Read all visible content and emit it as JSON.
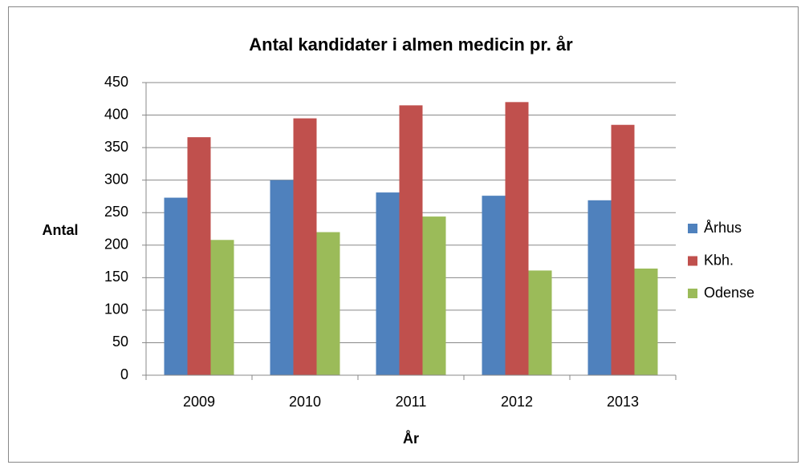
{
  "chart_data": {
    "type": "bar",
    "title": "Antal kandidater i almen medicin pr. år",
    "x_label": "År",
    "y_label": "Antal",
    "categories": [
      "2009",
      "2010",
      "2011",
      "2012",
      "2013"
    ],
    "series": [
      {
        "name": "Århus",
        "color": "#4f81bd",
        "values": [
          273,
          300,
          281,
          276,
          269
        ]
      },
      {
        "name": "Kbh.",
        "color": "#c0504d",
        "values": [
          366,
          395,
          415,
          420,
          385
        ]
      },
      {
        "name": "Odense",
        "color": "#9bbb59",
        "values": [
          208,
          220,
          244,
          161,
          164
        ]
      }
    ],
    "ylim": [
      0,
      450
    ],
    "yticks": [
      0,
      50,
      100,
      150,
      200,
      250,
      300,
      350,
      400,
      450
    ],
    "grid": true,
    "legend": "right"
  }
}
